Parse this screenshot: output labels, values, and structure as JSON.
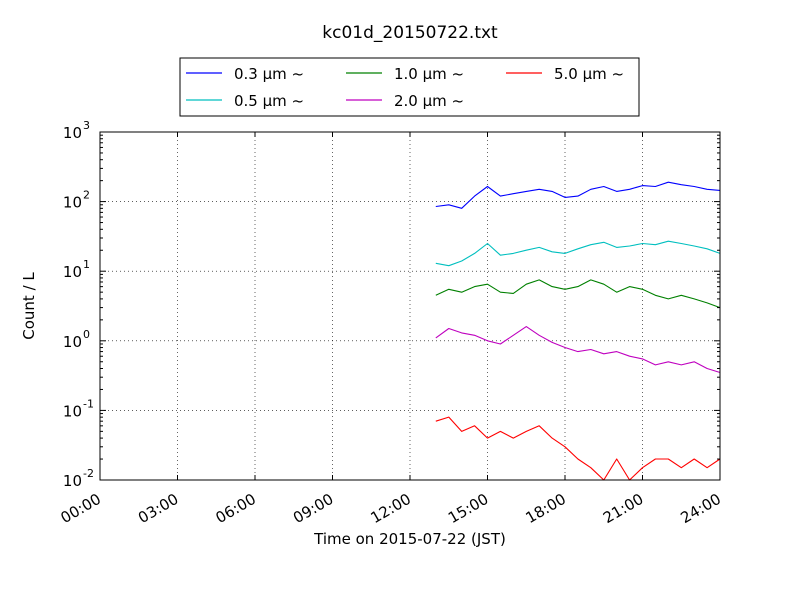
{
  "chart_data": {
    "type": "line",
    "title": "kc01d_20150722.txt",
    "xlabel": "Time on 2015-07-22 (JST)",
    "ylabel": "Count / L",
    "y_scale": "log",
    "xlim": [
      "00:00",
      "24:00"
    ],
    "ylim": [
      0.01,
      1000
    ],
    "grid": true,
    "legend_position": "top-center",
    "x_ticks": [
      "00:00",
      "03:00",
      "06:00",
      "09:00",
      "12:00",
      "15:00",
      "18:00",
      "21:00",
      "24:00"
    ],
    "y_ticks": [
      {
        "base": "10",
        "exp": "-2"
      },
      {
        "base": "10",
        "exp": "-1"
      },
      {
        "base": "10",
        "exp": "0"
      },
      {
        "base": "10",
        "exp": "1"
      },
      {
        "base": "10",
        "exp": "2"
      },
      {
        "base": "10",
        "exp": "3"
      }
    ],
    "x": [
      "13:00",
      "13:30",
      "14:00",
      "14:30",
      "15:00",
      "15:30",
      "16:00",
      "16:30",
      "17:00",
      "17:30",
      "18:00",
      "18:30",
      "19:00",
      "19:30",
      "20:00",
      "20:30",
      "21:00",
      "21:30",
      "22:00",
      "22:30",
      "23:00",
      "23:30",
      "24:00"
    ],
    "series": [
      {
        "name": "0.3 μm ~",
        "color": "#0000ff",
        "values": [
          85,
          90,
          80,
          120,
          165,
          120,
          130,
          140,
          150,
          140,
          115,
          120,
          150,
          165,
          140,
          150,
          170,
          165,
          190,
          175,
          165,
          150,
          145
        ]
      },
      {
        "name": "0.5 μm ~",
        "color": "#00bfbf",
        "values": [
          13,
          12,
          14,
          18,
          25,
          17,
          18,
          20,
          22,
          19,
          18,
          21,
          24,
          26,
          22,
          23,
          25,
          24,
          27,
          25,
          23,
          21,
          18
        ]
      },
      {
        "name": "1.0 μm ~",
        "color": "#008000",
        "values": [
          4.5,
          5.5,
          5.0,
          6.0,
          6.5,
          5.0,
          4.8,
          6.5,
          7.5,
          6.0,
          5.5,
          6.0,
          7.5,
          6.5,
          5.0,
          6.0,
          5.5,
          4.5,
          4.0,
          4.5,
          4.0,
          3.5,
          3.0
        ]
      },
      {
        "name": "2.0 μm ~",
        "color": "#bf00bf",
        "values": [
          1.1,
          1.5,
          1.3,
          1.2,
          1.0,
          0.9,
          1.2,
          1.6,
          1.2,
          0.95,
          0.8,
          0.7,
          0.75,
          0.65,
          0.7,
          0.6,
          0.55,
          0.45,
          0.5,
          0.45,
          0.5,
          0.4,
          0.35
        ]
      },
      {
        "name": "5.0 μm ~",
        "color": "#ff0000",
        "values": [
          0.07,
          0.08,
          0.05,
          0.06,
          0.04,
          0.05,
          0.04,
          0.05,
          0.06,
          0.04,
          0.03,
          0.02,
          0.015,
          0.01,
          0.02,
          0.01,
          0.015,
          0.02,
          0.02,
          0.015,
          0.02,
          0.015,
          0.02
        ]
      }
    ]
  }
}
